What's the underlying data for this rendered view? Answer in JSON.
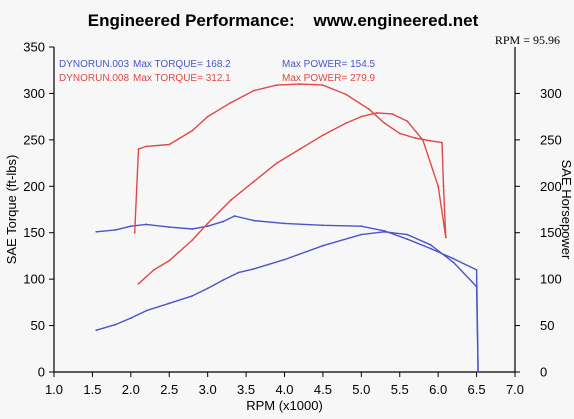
{
  "header": {
    "title": "Engineered Performance:    www.engineered.net",
    "rpm_readout": "RPM = 95.96"
  },
  "colors": {
    "run_003": "#4a55c8",
    "run_008": "#e04848",
    "axis": "#000000",
    "background": "#f7f7f7"
  },
  "legend": [
    {
      "run": "DYNORUN.003",
      "torque_label": "Max TORQUE= 168.2",
      "power_label": "Max POWER= 154.5",
      "color": "#4a55c8"
    },
    {
      "run": "DYNORUN.008",
      "torque_label": "Max TORQUE= 312.1",
      "power_label": "Max POWER= 279.9",
      "color": "#e04848"
    }
  ],
  "chart_data": {
    "type": "line",
    "xlabel": "RPM (x1000)",
    "ylabel_left": "SAE Torque (ft-lbs)",
    "ylabel_right": "SAE Horsepower",
    "xlim": [
      1.0,
      7.0
    ],
    "ylim": [
      0,
      350
    ],
    "x_ticks": [
      "1.0",
      "1.5",
      "2.0",
      "2.5",
      "3.0",
      "3.5",
      "4.0",
      "4.5",
      "5.0",
      "5.5",
      "6.0",
      "6.5",
      "7.0"
    ],
    "y_ticks_left": [
      "0",
      "50",
      "100",
      "150",
      "200",
      "250",
      "300",
      "350"
    ],
    "y_ticks_right": [
      "0",
      "50",
      "100",
      "150",
      "200",
      "250",
      "300"
    ],
    "grid": false,
    "series": [
      {
        "name": "DYNORUN.003",
        "kind": "torque",
        "color": "#4a55c8",
        "x": [
          1.55,
          1.8,
          2.0,
          2.2,
          2.5,
          2.8,
          3.0,
          3.2,
          3.35,
          3.6,
          4.0,
          4.5,
          5.0,
          5.3,
          5.6,
          5.9,
          6.2,
          6.5,
          6.52
        ],
        "y": [
          151,
          153,
          157,
          159,
          156,
          154,
          157,
          162,
          168,
          163,
          160,
          158,
          157,
          152,
          143,
          133,
          122,
          110,
          0
        ]
      },
      {
        "name": "DYNORUN.003",
        "kind": "power",
        "color": "#4a55c8",
        "x": [
          1.55,
          1.8,
          2.0,
          2.2,
          2.5,
          2.8,
          3.0,
          3.2,
          3.4,
          3.6,
          4.0,
          4.5,
          5.0,
          5.3,
          5.6,
          5.9,
          6.2,
          6.5,
          6.52
        ],
        "y": [
          45,
          51,
          58,
          66,
          74,
          82,
          90,
          99,
          107,
          111,
          121,
          136,
          148,
          151,
          148,
          137,
          118,
          92,
          0
        ]
      },
      {
        "name": "DYNORUN.008",
        "kind": "torque",
        "color": "#e04848",
        "x": [
          2.05,
          2.1,
          2.2,
          2.5,
          2.8,
          3.0,
          3.3,
          3.6,
          3.9,
          4.2,
          4.5,
          4.8,
          5.1,
          5.3,
          5.5,
          5.7,
          5.9,
          6.05,
          6.07,
          6.1
        ],
        "y": [
          150,
          240,
          243,
          245,
          260,
          275,
          290,
          303,
          309,
          310,
          309,
          299,
          283,
          268,
          257,
          252,
          249,
          247,
          200,
          145
        ]
      },
      {
        "name": "DYNORUN.008",
        "kind": "power",
        "color": "#e04848",
        "x": [
          2.1,
          2.3,
          2.5,
          2.8,
          3.0,
          3.3,
          3.6,
          3.9,
          4.2,
          4.5,
          4.8,
          5.0,
          5.2,
          5.4,
          5.6,
          5.8,
          6.0,
          6.1
        ],
        "y": [
          95,
          110,
          120,
          142,
          160,
          185,
          205,
          225,
          240,
          255,
          268,
          275,
          279,
          278,
          270,
          250,
          200,
          145
        ]
      }
    ]
  }
}
